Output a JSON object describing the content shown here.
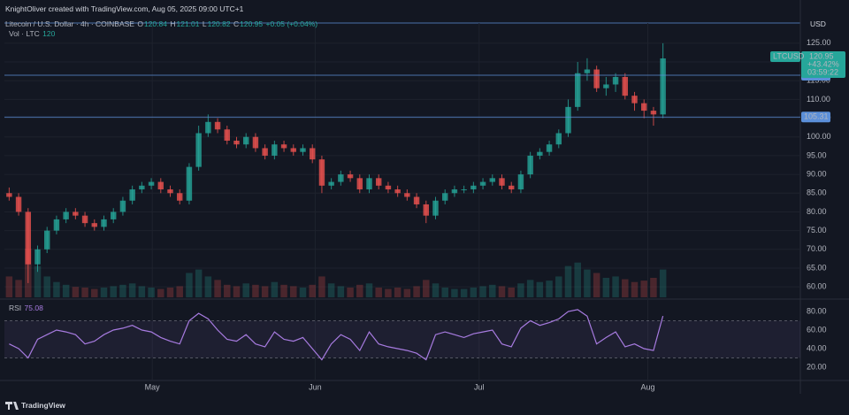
{
  "header": {
    "credit": "KnightOliver created with TradingView.com, Aug 05, 2025 09:00 UTC+1"
  },
  "legend": {
    "symbol": "Litecoin / U.S. Dollar · 4h · COINBASE",
    "o_label": "O",
    "open": "120.84",
    "h_label": "H",
    "high": "121.01",
    "l_label": "L",
    "low": "120.82",
    "c_label": "C",
    "close": "120.95",
    "change": "+0.05 (+0.04%)",
    "vol_label": "Vol · LTC",
    "vol": "120"
  },
  "footer": {
    "brand": "TradingView"
  },
  "chart_data": [
    {
      "type": "candlestick",
      "currency": "USD",
      "ticker": "LTCUSD",
      "change_pct": "+43.42%",
      "countdown": "03:59:22",
      "up_color": "#26a69a",
      "down_color": "#ef5350",
      "level_color": "#5b8fd9",
      "levels": [
        116.46,
        105.31
      ],
      "ylim": [
        57.2,
        130.4
      ],
      "yticks": [
        {
          "value": 60,
          "label": "60.00"
        },
        {
          "value": 65,
          "label": "65.00"
        },
        {
          "value": 70,
          "label": "70.00"
        },
        {
          "value": 75,
          "label": "75.00"
        },
        {
          "value": 80,
          "label": "80.00"
        },
        {
          "value": 85,
          "label": "85.00"
        },
        {
          "value": 90,
          "label": "90.00"
        },
        {
          "value": 95,
          "label": "95.00"
        },
        {
          "value": 100,
          "label": "100.00"
        },
        {
          "value": 105,
          "label": "105.00"
        },
        {
          "value": 110,
          "label": "110.00"
        },
        {
          "value": 115,
          "label": "115.00"
        },
        {
          "value": 120,
          "label": "120.00"
        },
        {
          "value": 125,
          "label": "125.00"
        }
      ],
      "xticks": [
        {
          "value": 15.1,
          "label": "May"
        },
        {
          "value": 32.3,
          "label": "Jun"
        },
        {
          "value": 49.6,
          "label": "Jul"
        },
        {
          "value": 67.4,
          "label": "Aug"
        }
      ],
      "open": [
        85,
        84,
        80,
        66,
        70,
        75,
        78,
        80,
        79,
        77,
        76,
        78,
        80,
        83,
        86,
        87,
        88,
        86,
        85,
        83,
        92,
        101,
        104,
        102,
        99,
        98,
        100,
        97,
        95,
        98,
        97,
        96,
        97,
        94,
        87,
        88,
        90,
        89,
        86,
        89,
        87,
        86,
        85,
        84,
        82,
        79,
        83,
        85,
        86,
        86,
        87,
        88,
        89,
        87,
        86,
        90,
        95,
        96,
        98,
        101,
        108,
        117,
        118,
        113,
        114,
        116,
        111,
        109,
        107,
        106
      ],
      "high": [
        86.5,
        85,
        81,
        71,
        76,
        79,
        81,
        81,
        80,
        78,
        79,
        81,
        84,
        87,
        88,
        89,
        89,
        87,
        86,
        93,
        103,
        106,
        105,
        103,
        100,
        101,
        101,
        98,
        99,
        99,
        98,
        98,
        98,
        95,
        89,
        91,
        91,
        90,
        90,
        90,
        88,
        87,
        86,
        85,
        83,
        84,
        86,
        87,
        87,
        88,
        89,
        90,
        90,
        88,
        91,
        96,
        97,
        99,
        102,
        110,
        120,
        121,
        119,
        116,
        117,
        117,
        112,
        110,
        108,
        125
      ],
      "low": [
        83,
        79,
        61,
        64,
        69,
        74,
        77,
        78,
        76,
        75,
        75,
        77,
        79,
        82,
        85,
        86,
        85,
        84,
        82,
        82,
        91,
        100,
        101,
        98,
        97,
        97,
        96,
        94,
        94,
        96,
        95,
        95,
        93,
        85,
        86,
        87,
        88,
        85,
        85,
        86,
        85,
        84,
        83,
        81,
        77,
        78,
        82,
        84,
        85,
        85,
        86,
        87,
        86,
        85,
        85,
        89,
        94,
        95,
        97,
        100,
        107,
        115,
        112,
        111,
        112,
        110,
        107,
        105,
        103,
        105
      ],
      "close": [
        84,
        80,
        66,
        70,
        75,
        78,
        80,
        79,
        77,
        76,
        78,
        80,
        83,
        86,
        87,
        88,
        86,
        85,
        83,
        92,
        101,
        104,
        102,
        99,
        98,
        100,
        97,
        95,
        98,
        97,
        96,
        97,
        94,
        87,
        88,
        90,
        89,
        86,
        89,
        87,
        86,
        85,
        84,
        82,
        79,
        83,
        85,
        86,
        86,
        87,
        88,
        89,
        87,
        86,
        90,
        95,
        96,
        98,
        101,
        108,
        117,
        118,
        113,
        114,
        116,
        111,
        109,
        107,
        106,
        120.95
      ],
      "volume": [
        30,
        25,
        70,
        45,
        30,
        22,
        18,
        15,
        14,
        12,
        14,
        16,
        18,
        20,
        16,
        14,
        12,
        14,
        16,
        35,
        40,
        30,
        25,
        18,
        16,
        20,
        18,
        16,
        22,
        18,
        16,
        14,
        18,
        30,
        20,
        16,
        14,
        18,
        20,
        14,
        12,
        14,
        12,
        16,
        25,
        20,
        14,
        12,
        12,
        14,
        16,
        18,
        16,
        14,
        20,
        25,
        22,
        24,
        30,
        45,
        50,
        40,
        35,
        28,
        30,
        26,
        22,
        24,
        28,
        40
      ]
    },
    {
      "type": "line",
      "title": "RSI",
      "last": "75.08",
      "color": "#a77be0",
      "band": [
        30,
        70
      ],
      "ylim": [
        7.6,
        89.5
      ],
      "yticks": [
        {
          "value": 20,
          "label": "20.00"
        },
        {
          "value": 40,
          "label": "40.00"
        },
        {
          "value": 60,
          "label": "60.00"
        },
        {
          "value": 80,
          "label": "80.00"
        }
      ],
      "values": [
        45,
        40,
        30,
        50,
        55,
        60,
        58,
        55,
        45,
        48,
        55,
        60,
        62,
        65,
        60,
        58,
        52,
        48,
        45,
        70,
        78,
        72,
        60,
        50,
        48,
        55,
        45,
        42,
        58,
        50,
        48,
        52,
        40,
        28,
        45,
        55,
        50,
        38,
        58,
        45,
        42,
        40,
        38,
        35,
        28,
        55,
        58,
        55,
        52,
        56,
        58,
        60,
        45,
        42,
        62,
        70,
        65,
        68,
        72,
        80,
        82,
        75,
        45,
        52,
        58,
        42,
        45,
        40,
        38,
        75.08
      ]
    }
  ]
}
